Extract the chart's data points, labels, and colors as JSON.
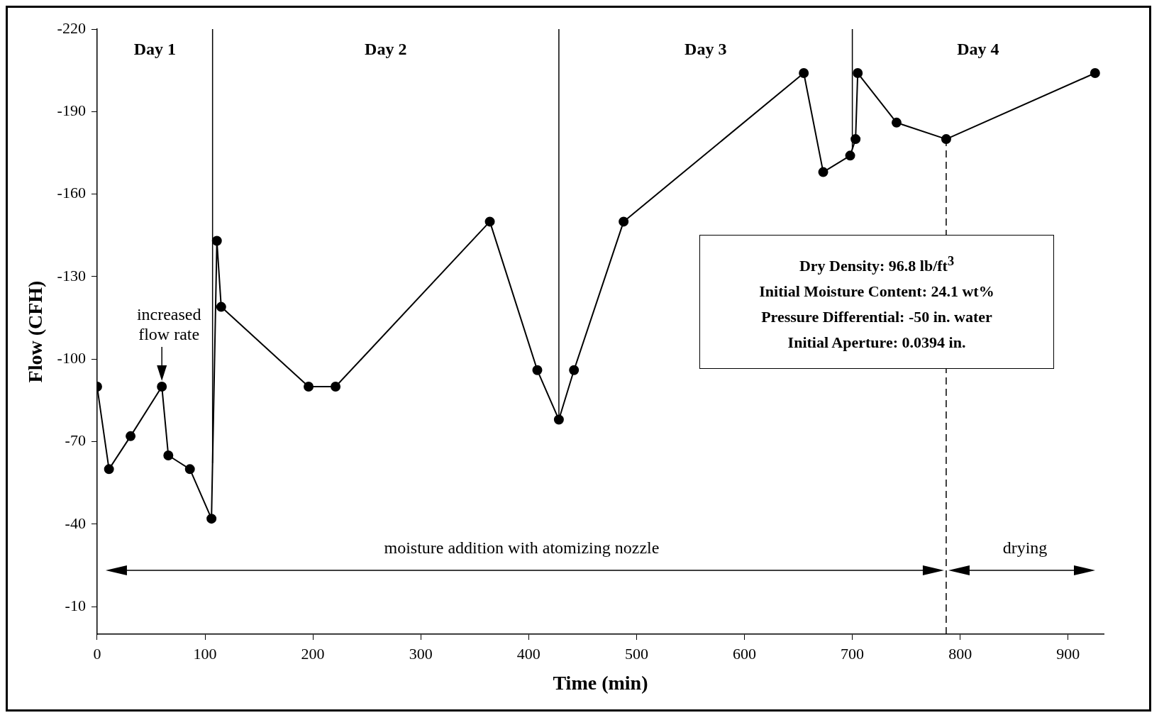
{
  "chart_data": {
    "type": "line",
    "xlabel": "Time (min)",
    "ylabel": "Flow (CFH)",
    "x": [
      0,
      11,
      31,
      60,
      66,
      86,
      106,
      111,
      115,
      196,
      221,
      364,
      408,
      428,
      442,
      488,
      655,
      673,
      698,
      703,
      705,
      741,
      787,
      925
    ],
    "series": [
      {
        "color": "#000000",
        "values": [
          -90,
          -60,
          -72,
          -90,
          -65,
          -60,
          -42,
          -143,
          -119,
          -90,
          -90,
          -150,
          -96,
          -78,
          -96,
          -150,
          -204,
          -168,
          -174,
          -180,
          -204,
          -186,
          -180,
          -204
        ]
      }
    ],
    "xlim": [
      0,
      933
    ],
    "xticks": [
      0,
      100,
      200,
      300,
      400,
      500,
      600,
      700,
      800,
      900
    ],
    "ylim": [
      0,
      -220
    ],
    "yticks": [
      -220,
      -190,
      -160,
      -130,
      -100,
      -70,
      -40,
      -10
    ],
    "grid": false,
    "legend": false,
    "marker": "circle",
    "line_style": "solid",
    "ref_lines": [
      {
        "axis": "x",
        "value": 107,
        "color": "#000000",
        "line_style": "solid"
      },
      {
        "axis": "x",
        "value": 428,
        "color": "#000000",
        "line_style": "solid"
      },
      {
        "axis": "x",
        "value": 700,
        "color": "#000000",
        "line_style": "solid"
      },
      {
        "axis": "x",
        "value": 787,
        "color": "#000000",
        "line_style": "dashed"
      }
    ],
    "annotations": [
      "Day 1",
      "Day 2",
      "Day 3",
      "Day 4",
      "moisture addition with atomizing nozzle",
      "drying",
      {
        "text": "increased flow rate",
        "x": 60,
        "y": -90
      },
      "Dry Density: 96.8 lb/ft$^{3}$",
      "Initial Moisture Content: 24.1 wt%",
      "Pressure Differential: -50 in. water",
      "Initial Aperture: 0.0394 in."
    ]
  }
}
